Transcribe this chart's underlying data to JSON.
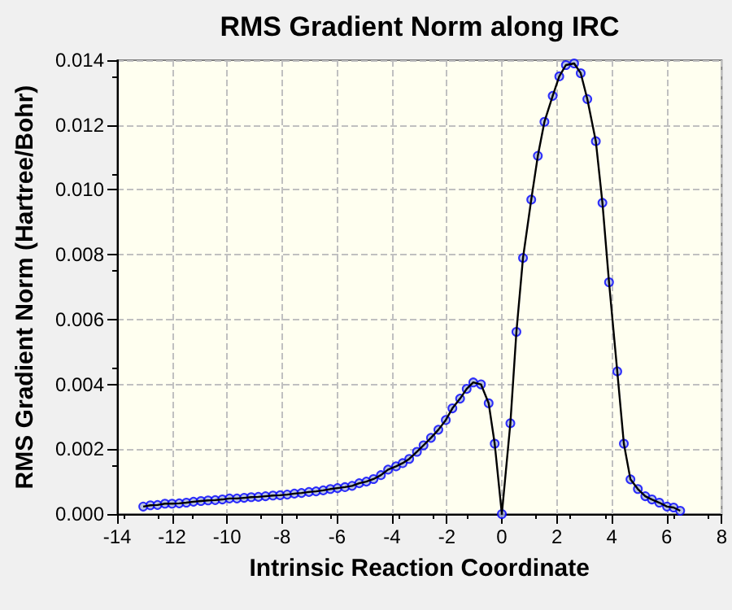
{
  "chart_data": {
    "type": "line",
    "title": "RMS Gradient Norm along IRC",
    "xlabel": "Intrinsic Reaction Coordinate",
    "ylabel": "RMS Gradient Norm (Hartree/Bohr)",
    "x": [
      -13.05,
      -12.79,
      -12.53,
      -12.26,
      -12.0,
      -11.74,
      -11.48,
      -11.22,
      -10.95,
      -10.69,
      -10.43,
      -10.17,
      -9.91,
      -9.64,
      -9.38,
      -9.12,
      -8.86,
      -8.6,
      -8.33,
      -8.07,
      -7.81,
      -7.55,
      -7.29,
      -7.02,
      -6.76,
      -6.5,
      -6.24,
      -5.98,
      -5.71,
      -5.45,
      -5.19,
      -4.93,
      -4.67,
      -4.4,
      -4.14,
      -3.85,
      -3.61,
      -3.37,
      -3.09,
      -2.85,
      -2.58,
      -2.31,
      -2.04,
      -1.8,
      -1.52,
      -1.28,
      -1.04,
      -0.76,
      -0.48,
      -0.26,
      0.0,
      0.31,
      0.53,
      0.77,
      1.07,
      1.31,
      1.55,
      1.85,
      2.09,
      2.33,
      2.63,
      2.87,
      3.11,
      3.42,
      3.66,
      3.9,
      4.2,
      4.44,
      4.68,
      4.95,
      5.22,
      5.46,
      5.73,
      6.01,
      6.25,
      6.49
    ],
    "series": [
      {
        "color": "#0000ff",
        "values": [
          0.00023,
          0.00027,
          0.00028,
          0.00032,
          0.00032,
          0.00033,
          0.00035,
          0.00038,
          0.0004,
          0.00042,
          0.00043,
          0.00045,
          0.00048,
          0.00048,
          0.0005,
          0.00052,
          0.00053,
          0.00055,
          0.00057,
          0.00058,
          0.0006,
          0.00063,
          0.00065,
          0.00068,
          0.0007,
          0.00073,
          0.00077,
          0.0008,
          0.00083,
          0.00087,
          0.00095,
          0.001,
          0.00108,
          0.0012,
          0.00137,
          0.00147,
          0.00157,
          0.0017,
          0.00192,
          0.00212,
          0.00235,
          0.0026,
          0.0029,
          0.00326,
          0.00356,
          0.00386,
          0.00406,
          0.004,
          0.00342,
          0.00217,
          0.0,
          0.0028,
          0.00562,
          0.0079,
          0.0097,
          0.01105,
          0.0121,
          0.0129,
          0.0135,
          0.01385,
          0.0139,
          0.0136,
          0.0128,
          0.0115,
          0.0096,
          0.00715,
          0.0044,
          0.00217,
          0.00107,
          0.00077,
          0.00055,
          0.00045,
          0.00035,
          0.00023,
          0.0002,
          0.0001
        ]
      }
    ],
    "xlim": [
      -14,
      8
    ],
    "xticks": [
      -14,
      -12,
      -10,
      -8,
      -6,
      -4,
      -2,
      0,
      2,
      4,
      6,
      8
    ],
    "ylim": [
      0,
      0.014
    ],
    "yticks": [
      {
        "value": 0,
        "label": "0.000"
      },
      {
        "value": 0.002,
        "label": "0.002"
      },
      {
        "value": 0.004,
        "label": "0.004"
      },
      {
        "value": 0.006,
        "label": "0.006"
      },
      {
        "value": 0.008,
        "label": "0.008"
      },
      {
        "value": 0.01,
        "label": "0.010"
      },
      {
        "value": 0.012,
        "label": "0.012"
      },
      {
        "value": 0.014,
        "label": "0.014"
      }
    ],
    "grid": true,
    "marker": "circle",
    "line_style": "solid"
  }
}
